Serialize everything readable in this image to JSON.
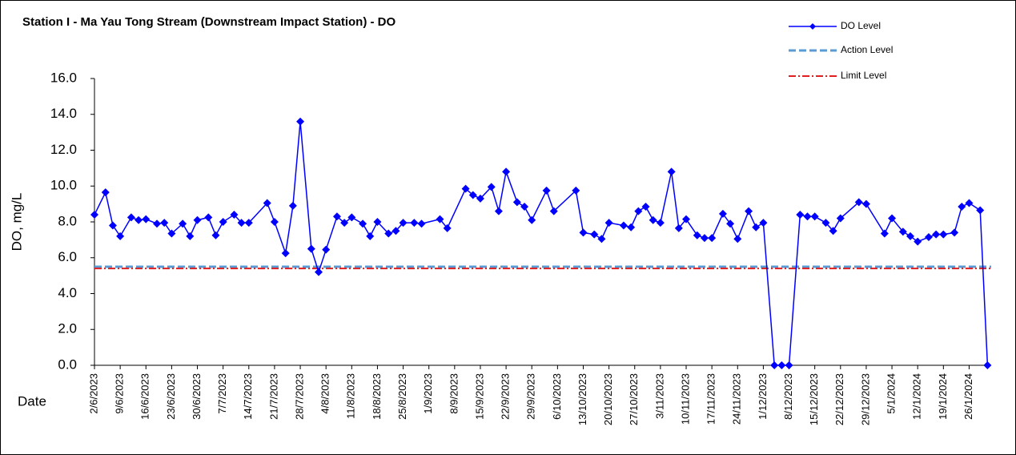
{
  "chart_data": {
    "type": "line",
    "title": "Station I - Ma Yau Tong Stream (Downstream Impact Station) - DO",
    "xlabel": "Date",
    "ylabel": "DO, mg/L",
    "x": [
      "2/6/2023",
      "5/6/2023",
      "7/6/2023",
      "9/6/2023",
      "12/6/2023",
      "14/6/2023",
      "16/6/2023",
      "19/6/2023",
      "21/6/2023",
      "23/6/2023",
      "26/6/2023",
      "28/6/2023",
      "30/6/2023",
      "3/7/2023",
      "5/7/2023",
      "7/7/2023",
      "10/7/2023",
      "12/7/2023",
      "14/7/2023",
      "19/7/2023",
      "21/7/2023",
      "24/7/2023",
      "26/7/2023",
      "28/7/2023",
      "31/7/2023",
      "2/8/2023",
      "4/8/2023",
      "7/8/2023",
      "9/8/2023",
      "11/8/2023",
      "14/8/2023",
      "16/8/2023",
      "18/8/2023",
      "21/8/2023",
      "23/8/2023",
      "25/8/2023",
      "28/8/2023",
      "30/8/2023",
      "4/9/2023",
      "6/9/2023",
      "11/9/2023",
      "13/9/2023",
      "15/9/2023",
      "18/9/2023",
      "20/9/2023",
      "22/9/2023",
      "25/9/2023",
      "27/9/2023",
      "29/9/2023",
      "3/10/2023",
      "5/10/2023",
      "11/10/2023",
      "13/10/2023",
      "16/10/2023",
      "18/10/2023",
      "20/10/2023",
      "24/10/2023",
      "26/10/2023",
      "28/10/2023",
      "30/10/2023",
      "1/11/2023",
      "3/11/2023",
      "6/11/2023",
      "8/11/2023",
      "10/11/2023",
      "13/11/2023",
      "15/11/2023",
      "17/11/2023",
      "20/11/2023",
      "22/11/2023",
      "24/11/2023",
      "27/11/2023",
      "29/11/2023",
      "1/12/2023",
      "4/12/2023",
      "6/12/2023",
      "8/12/2023",
      "11/12/2023",
      "13/12/2023",
      "15/12/2023",
      "18/12/2023",
      "20/12/2023",
      "22/12/2023",
      "27/12/2023",
      "29/12/2023",
      "3/1/2024",
      "5/1/2024",
      "8/1/2024",
      "10/1/2024",
      "12/1/2024",
      "15/1/2024",
      "17/1/2024",
      "19/1/2024",
      "22/1/2024",
      "24/1/2024",
      "26/1/2024",
      "29/1/2024",
      "31/1/2024"
    ],
    "series": [
      {
        "name": "DO Level",
        "color": "#0000ff",
        "values": [
          8.4,
          9.65,
          7.8,
          7.2,
          8.25,
          8.1,
          8.15,
          7.9,
          7.95,
          7.35,
          7.9,
          7.2,
          8.1,
          8.25,
          7.25,
          8.0,
          8.4,
          7.95,
          7.95,
          9.05,
          8.0,
          6.25,
          8.9,
          13.6,
          6.5,
          5.2,
          6.45,
          8.3,
          7.95,
          8.25,
          7.9,
          7.2,
          8.0,
          7.35,
          7.5,
          7.95,
          7.95,
          7.9,
          8.15,
          7.65,
          9.85,
          9.5,
          9.3,
          9.95,
          8.6,
          10.8,
          9.1,
          8.85,
          8.1,
          9.75,
          8.6,
          9.75,
          7.4,
          7.3,
          7.05,
          7.95,
          7.8,
          7.7,
          8.6,
          8.85,
          8.1,
          7.95,
          10.8,
          7.65,
          8.15,
          7.25,
          7.1,
          7.1,
          8.45,
          7.9,
          7.05,
          8.6,
          7.7,
          7.95,
          0,
          0,
          0,
          8.4,
          8.3,
          8.3,
          7.95,
          7.5,
          8.2,
          9.1,
          9.0,
          7.35,
          8.2,
          7.45,
          7.2,
          6.9,
          7.15,
          7.3,
          7.3,
          7.4,
          8.85,
          9.05,
          8.65,
          0
        ]
      }
    ],
    "reference_lines": [
      {
        "name": "Action Level",
        "value": 5.5,
        "color": "#5b9bd5"
      },
      {
        "name": "Limit Level",
        "value": 5.4,
        "color": "#e02020"
      }
    ],
    "xlim": [
      "2/6/2023",
      "1/2/2024"
    ],
    "xticks": [
      "2/6/2023",
      "9/6/2023",
      "16/6/2023",
      "23/6/2023",
      "30/6/2023",
      "7/7/2023",
      "14/7/2023",
      "21/7/2023",
      "28/7/2023",
      "4/8/2023",
      "11/8/2023",
      "18/8/2023",
      "25/8/2023",
      "1/9/2023",
      "8/9/2023",
      "15/9/2023",
      "22/9/2023",
      "29/9/2023",
      "6/10/2023",
      "13/10/2023",
      "20/10/2023",
      "27/10/2023",
      "3/11/2023",
      "10/11/2023",
      "17/11/2023",
      "24/11/2023",
      "1/12/2023",
      "8/12/2023",
      "15/12/2023",
      "22/12/2023",
      "29/12/2023",
      "5/1/2024",
      "12/1/2024",
      "19/1/2024",
      "26/1/2024"
    ],
    "ylim": [
      0,
      16
    ],
    "yticks": [
      {
        "value": 0,
        "label": "0.0"
      },
      {
        "value": 2,
        "label": "2.0"
      },
      {
        "value": 4,
        "label": "4.0"
      },
      {
        "value": 6,
        "label": "6.0"
      },
      {
        "value": 8,
        "label": "8.0"
      },
      {
        "value": 10,
        "label": "10.0"
      },
      {
        "value": 12,
        "label": "12.0"
      },
      {
        "value": 14,
        "label": "14.0"
      },
      {
        "value": 16,
        "label": "16.0"
      }
    ],
    "legend": "top-right"
  }
}
